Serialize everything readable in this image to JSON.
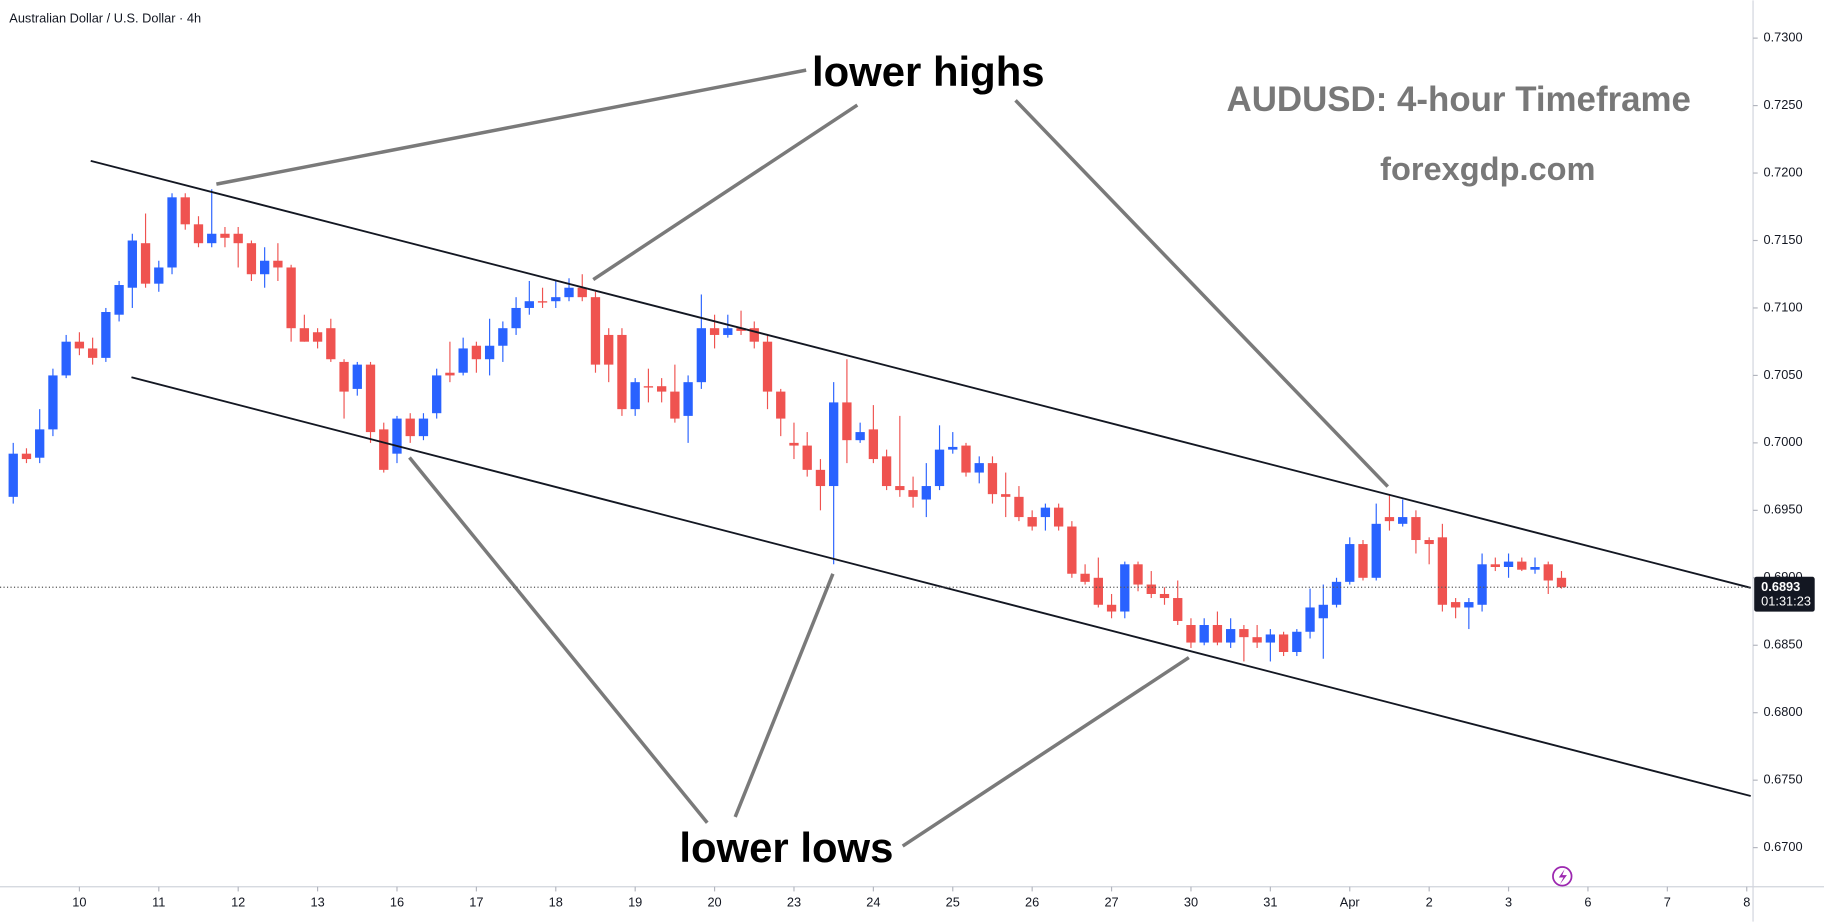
{
  "chart_data": {
    "type": "candlestick",
    "title": "Australian Dollar / U.S. Dollar · 4h",
    "annotations": [
      "lower highs",
      "lower lows",
      "AUDUSD: 4-hour Timeframe",
      "forexgdp.com"
    ],
    "open": [
      0.696,
      0.6992,
      0.6989,
      0.701,
      0.705,
      0.7075,
      0.707,
      0.7063,
      0.7095,
      0.7115,
      0.7148,
      0.7118,
      0.713,
      0.7182,
      0.7162,
      0.7148,
      0.7155,
      0.7155,
      0.7148,
      0.7125,
      0.7135,
      0.713,
      0.7085,
      0.7082,
      0.7085,
      0.706,
      0.704,
      0.7058,
      0.701,
      0.6992,
      0.7018,
      0.7005,
      0.7022,
      0.7052,
      0.7052,
      0.7072,
      0.7062,
      0.7072,
      0.7085,
      0.71,
      0.7105,
      0.7105,
      0.7108,
      0.7115,
      0.7108,
      0.708,
      0.708,
      0.7025,
      0.7042,
      0.7042,
      0.7038,
      0.702,
      0.7045,
      0.7085,
      0.708,
      0.7085,
      0.7085,
      0.7075,
      0.7038,
      0.7,
      0.6998,
      0.698,
      0.6968,
      0.703,
      0.7002,
      0.701,
      0.699,
      0.6968,
      0.6965,
      0.6958,
      0.6968,
      0.6995,
      0.6998,
      0.6978,
      0.6985,
      0.6962,
      0.696,
      0.6945,
      0.6945,
      0.6952,
      0.6938,
      0.6903,
      0.69,
      0.688,
      0.6875,
      0.691,
      0.6895,
      0.6888,
      0.6885,
      0.6865,
      0.6852,
      0.6865,
      0.6852,
      0.6862,
      0.6856,
      0.6852,
      0.6858,
      0.6845,
      0.686,
      0.687,
      0.688,
      0.6897,
      0.6925,
      0.69,
      0.6945,
      0.694,
      0.6945,
      0.6928,
      0.693,
      0.6882,
      0.6878,
      0.688,
      0.691,
      0.6908,
      0.6912,
      0.6906,
      0.691,
      0.69
    ],
    "high": [
      0.7,
      0.6996,
      0.7025,
      0.7055,
      0.708,
      0.7082,
      0.7078,
      0.71,
      0.712,
      0.7155,
      0.717,
      0.7135,
      0.7185,
      0.7185,
      0.7168,
      0.7188,
      0.716,
      0.716,
      0.715,
      0.7145,
      0.7148,
      0.7132,
      0.7095,
      0.7085,
      0.7092,
      0.7062,
      0.706,
      0.706,
      0.7015,
      0.702,
      0.7022,
      0.7022,
      0.7055,
      0.7075,
      0.7078,
      0.7075,
      0.7092,
      0.709,
      0.7108,
      0.712,
      0.7115,
      0.712,
      0.7122,
      0.7125,
      0.7112,
      0.7085,
      0.7085,
      0.7048,
      0.7055,
      0.7048,
      0.7058,
      0.705,
      0.711,
      0.7095,
      0.7095,
      0.7098,
      0.709,
      0.708,
      0.704,
      0.7015,
      0.7008,
      0.6988,
      0.7045,
      0.7062,
      0.7015,
      0.7028,
      0.6995,
      0.702,
      0.6975,
      0.6985,
      0.7013,
      0.7008,
      0.7,
      0.699,
      0.699,
      0.6978,
      0.6968,
      0.695,
      0.6955,
      0.6955,
      0.6942,
      0.691,
      0.6915,
      0.6888,
      0.6912,
      0.6912,
      0.6905,
      0.6893,
      0.6898,
      0.687,
      0.687,
      0.6875,
      0.687,
      0.6865,
      0.6865,
      0.6862,
      0.686,
      0.6862,
      0.6892,
      0.6895,
      0.69,
      0.693,
      0.6928,
      0.6955,
      0.6962,
      0.6958,
      0.695,
      0.693,
      0.694,
      0.6885,
      0.6885,
      0.6918,
      0.6915,
      0.6918,
      0.6915,
      0.6915,
      0.6912,
      0.6905
    ],
    "low": [
      0.6955,
      0.6985,
      0.6985,
      0.7005,
      0.7048,
      0.7065,
      0.7058,
      0.706,
      0.709,
      0.71,
      0.7115,
      0.7112,
      0.7125,
      0.7158,
      0.7145,
      0.7145,
      0.7145,
      0.713,
      0.712,
      0.7115,
      0.712,
      0.7075,
      0.7075,
      0.707,
      0.706,
      0.7018,
      0.7035,
      0.7,
      0.6978,
      0.6985,
      0.7,
      0.7002,
      0.7018,
      0.7045,
      0.705,
      0.7052,
      0.705,
      0.706,
      0.708,
      0.7095,
      0.71,
      0.71,
      0.7105,
      0.7105,
      0.7052,
      0.7045,
      0.702,
      0.702,
      0.703,
      0.703,
      0.7015,
      0.7,
      0.704,
      0.707,
      0.7078,
      0.708,
      0.707,
      0.7025,
      0.7005,
      0.6988,
      0.6975,
      0.695,
      0.691,
      0.6985,
      0.7,
      0.6985,
      0.6965,
      0.696,
      0.6952,
      0.6945,
      0.6965,
      0.6992,
      0.6975,
      0.697,
      0.6955,
      0.6945,
      0.6942,
      0.6935,
      0.6935,
      0.6935,
      0.69,
      0.6895,
      0.6878,
      0.687,
      0.687,
      0.689,
      0.6885,
      0.688,
      0.6865,
      0.6848,
      0.685,
      0.685,
      0.6848,
      0.6838,
      0.6848,
      0.6838,
      0.6842,
      0.6842,
      0.6855,
      0.684,
      0.6878,
      0.6895,
      0.6898,
      0.6898,
      0.6935,
      0.6938,
      0.6918,
      0.691,
      0.6875,
      0.687,
      0.6862,
      0.6875,
      0.6905,
      0.69,
      0.6905,
      0.6903,
      0.6888,
      0.6892
    ],
    "close": [
      0.6992,
      0.6988,
      0.701,
      0.705,
      0.7075,
      0.707,
      0.7063,
      0.7097,
      0.7117,
      0.715,
      0.7118,
      0.713,
      0.7182,
      0.7162,
      0.7148,
      0.7155,
      0.7152,
      0.7148,
      0.7125,
      0.7135,
      0.713,
      0.7085,
      0.7075,
      0.7075,
      0.7062,
      0.7038,
      0.7058,
      0.7008,
      0.698,
      0.7018,
      0.7005,
      0.7018,
      0.705,
      0.705,
      0.707,
      0.7062,
      0.7072,
      0.7085,
      0.71,
      0.7105,
      0.7104,
      0.7108,
      0.7115,
      0.7108,
      0.7058,
      0.7058,
      0.7025,
      0.7045,
      0.7041,
      0.7038,
      0.7018,
      0.7045,
      0.7085,
      0.708,
      0.7085,
      0.7083,
      0.7075,
      0.7038,
      0.7018,
      0.6998,
      0.698,
      0.6968,
      0.703,
      0.7002,
      0.7008,
      0.6988,
      0.6968,
      0.6965,
      0.696,
      0.6968,
      0.6995,
      0.6997,
      0.6978,
      0.6985,
      0.6962,
      0.696,
      0.6945,
      0.6938,
      0.6952,
      0.6938,
      0.6903,
      0.6897,
      0.688,
      0.6875,
      0.691,
      0.6895,
      0.6888,
      0.6885,
      0.6868,
      0.6852,
      0.6865,
      0.6852,
      0.6862,
      0.6856,
      0.6852,
      0.6858,
      0.6845,
      0.686,
      0.6878,
      0.688,
      0.6897,
      0.6925,
      0.69,
      0.694,
      0.6942,
      0.6945,
      0.6928,
      0.6925,
      0.688,
      0.6878,
      0.6882,
      0.691,
      0.6908,
      0.6912,
      0.6906,
      0.6908,
      0.6898,
      0.6893
    ],
    "up_color": "#2962ff",
    "down_color": "#ef5350",
    "last_price": 0.6893,
    "countdown": "01:31:23",
    "xlim": [
      -1,
      131.3
    ],
    "xticks": [
      {
        "value": 5,
        "label": "10"
      },
      {
        "value": 11,
        "label": "11"
      },
      {
        "value": 17,
        "label": "12"
      },
      {
        "value": 23,
        "label": "13"
      },
      {
        "value": 29,
        "label": "16"
      },
      {
        "value": 35,
        "label": "17"
      },
      {
        "value": 41,
        "label": "18"
      },
      {
        "value": 47,
        "label": "19"
      },
      {
        "value": 53,
        "label": "20"
      },
      {
        "value": 59,
        "label": "23"
      },
      {
        "value": 65,
        "label": "24"
      },
      {
        "value": 71,
        "label": "25"
      },
      {
        "value": 77,
        "label": "26"
      },
      {
        "value": 83,
        "label": "27"
      },
      {
        "value": 89,
        "label": "30"
      },
      {
        "value": 95,
        "label": "31"
      },
      {
        "value": 101,
        "label": "Apr"
      },
      {
        "value": 107,
        "label": "2"
      },
      {
        "value": 113,
        "label": "3"
      },
      {
        "value": 119,
        "label": "6"
      },
      {
        "value": 125,
        "label": "7"
      },
      {
        "value": 131,
        "label": "8"
      }
    ],
    "ylim": [
      0.6671,
      0.7328
    ],
    "yticks": [
      {
        "value": 0.67,
        "label": "0.6700"
      },
      {
        "value": 0.675,
        "label": "0.6750"
      },
      {
        "value": 0.68,
        "label": "0.6800"
      },
      {
        "value": 0.685,
        "label": "0.6850"
      },
      {
        "value": 0.69,
        "label": "0.6900"
      },
      {
        "value": 0.695,
        "label": "0.6950"
      },
      {
        "value": 0.7,
        "label": "0.7000"
      },
      {
        "value": 0.705,
        "label": "0.7050"
      },
      {
        "value": 0.71,
        "label": "0.7100"
      },
      {
        "value": 0.715,
        "label": "0.7150"
      },
      {
        "value": 0.72,
        "label": "0.7200"
      },
      {
        "value": 0.725,
        "label": "0.7250"
      },
      {
        "value": 0.73,
        "label": "0.7300"
      }
    ],
    "grid": false
  }
}
